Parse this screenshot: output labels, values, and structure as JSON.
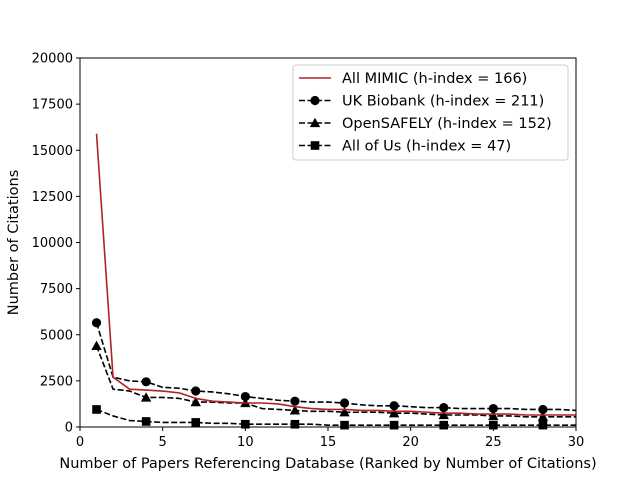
{
  "chart_data": {
    "type": "line",
    "title": "",
    "xlabel": "Number of Papers Referencing Database (Ranked by Number of Citations)",
    "ylabel": "Number of Citations",
    "xlim": [
      0,
      30
    ],
    "ylim": [
      0,
      20000
    ],
    "xticks": [
      0,
      5,
      10,
      15,
      20,
      25,
      30
    ],
    "yticks": [
      0,
      2500,
      5000,
      7500,
      10000,
      12500,
      15000,
      17500,
      20000
    ],
    "grid": false,
    "legend_position": "top-right",
    "series": [
      {
        "name": "All MIMIC (h-index = 166)",
        "color": "#b22222",
        "style": "solid",
        "marker": "none",
        "x": [
          1,
          2,
          3,
          4,
          5,
          6,
          7,
          8,
          9,
          10,
          11,
          12,
          13,
          14,
          15,
          16,
          17,
          18,
          19,
          20,
          21,
          22,
          23,
          24,
          25,
          26,
          27,
          28,
          29,
          30
        ],
        "y": [
          15900,
          2700,
          2050,
          2000,
          1950,
          1850,
          1550,
          1400,
          1350,
          1300,
          1300,
          1250,
          1100,
          1000,
          950,
          950,
          900,
          900,
          850,
          850,
          800,
          750,
          750,
          700,
          700,
          700,
          650,
          650,
          650,
          650
        ]
      },
      {
        "name": "UK Biobank (h-index = 211)",
        "color": "#000000",
        "style": "dashed",
        "marker": "circle",
        "x": [
          1,
          2,
          3,
          4,
          5,
          6,
          7,
          8,
          9,
          10,
          11,
          12,
          13,
          14,
          15,
          16,
          17,
          18,
          19,
          20,
          21,
          22,
          23,
          24,
          25,
          26,
          27,
          28,
          29,
          30
        ],
        "y": [
          5650,
          2700,
          2500,
          2450,
          2150,
          2100,
          1950,
          1900,
          1800,
          1650,
          1550,
          1450,
          1400,
          1350,
          1350,
          1300,
          1200,
          1150,
          1150,
          1100,
          1050,
          1050,
          1000,
          1000,
          1000,
          1000,
          950,
          950,
          950,
          900
        ]
      },
      {
        "name": "OpenSAFELY (h-index = 152)",
        "color": "#000000",
        "style": "dashed",
        "marker": "triangle",
        "x": [
          1,
          2,
          3,
          4,
          5,
          6,
          7,
          8,
          9,
          10,
          11,
          12,
          13,
          14,
          15,
          16,
          17,
          18,
          19,
          20,
          21,
          22,
          23,
          24,
          25,
          26,
          27,
          28,
          29,
          30
        ],
        "y": [
          4400,
          2050,
          1950,
          1600,
          1600,
          1550,
          1350,
          1350,
          1300,
          1300,
          1000,
          950,
          900,
          850,
          850,
          800,
          800,
          800,
          750,
          750,
          700,
          650,
          650,
          650,
          600,
          600,
          550,
          550,
          550,
          550
        ]
      },
      {
        "name": "All of Us (h-index = 47)",
        "color": "#000000",
        "style": "dashed",
        "marker": "square",
        "x": [
          1,
          2,
          3,
          4,
          5,
          6,
          7,
          8,
          9,
          10,
          11,
          12,
          13,
          14,
          15,
          16,
          17,
          18,
          19,
          20,
          21,
          22,
          23,
          24,
          25,
          26,
          27,
          28,
          29,
          30
        ],
        "y": [
          950,
          600,
          350,
          300,
          250,
          250,
          250,
          200,
          200,
          150,
          150,
          150,
          150,
          150,
          100,
          100,
          100,
          100,
          100,
          100,
          100,
          100,
          100,
          100,
          100,
          100,
          100,
          100,
          100,
          100
        ]
      }
    ],
    "marker_x": [
      1,
      4,
      7,
      10,
      13,
      16,
      19,
      22,
      25,
      28
    ]
  }
}
